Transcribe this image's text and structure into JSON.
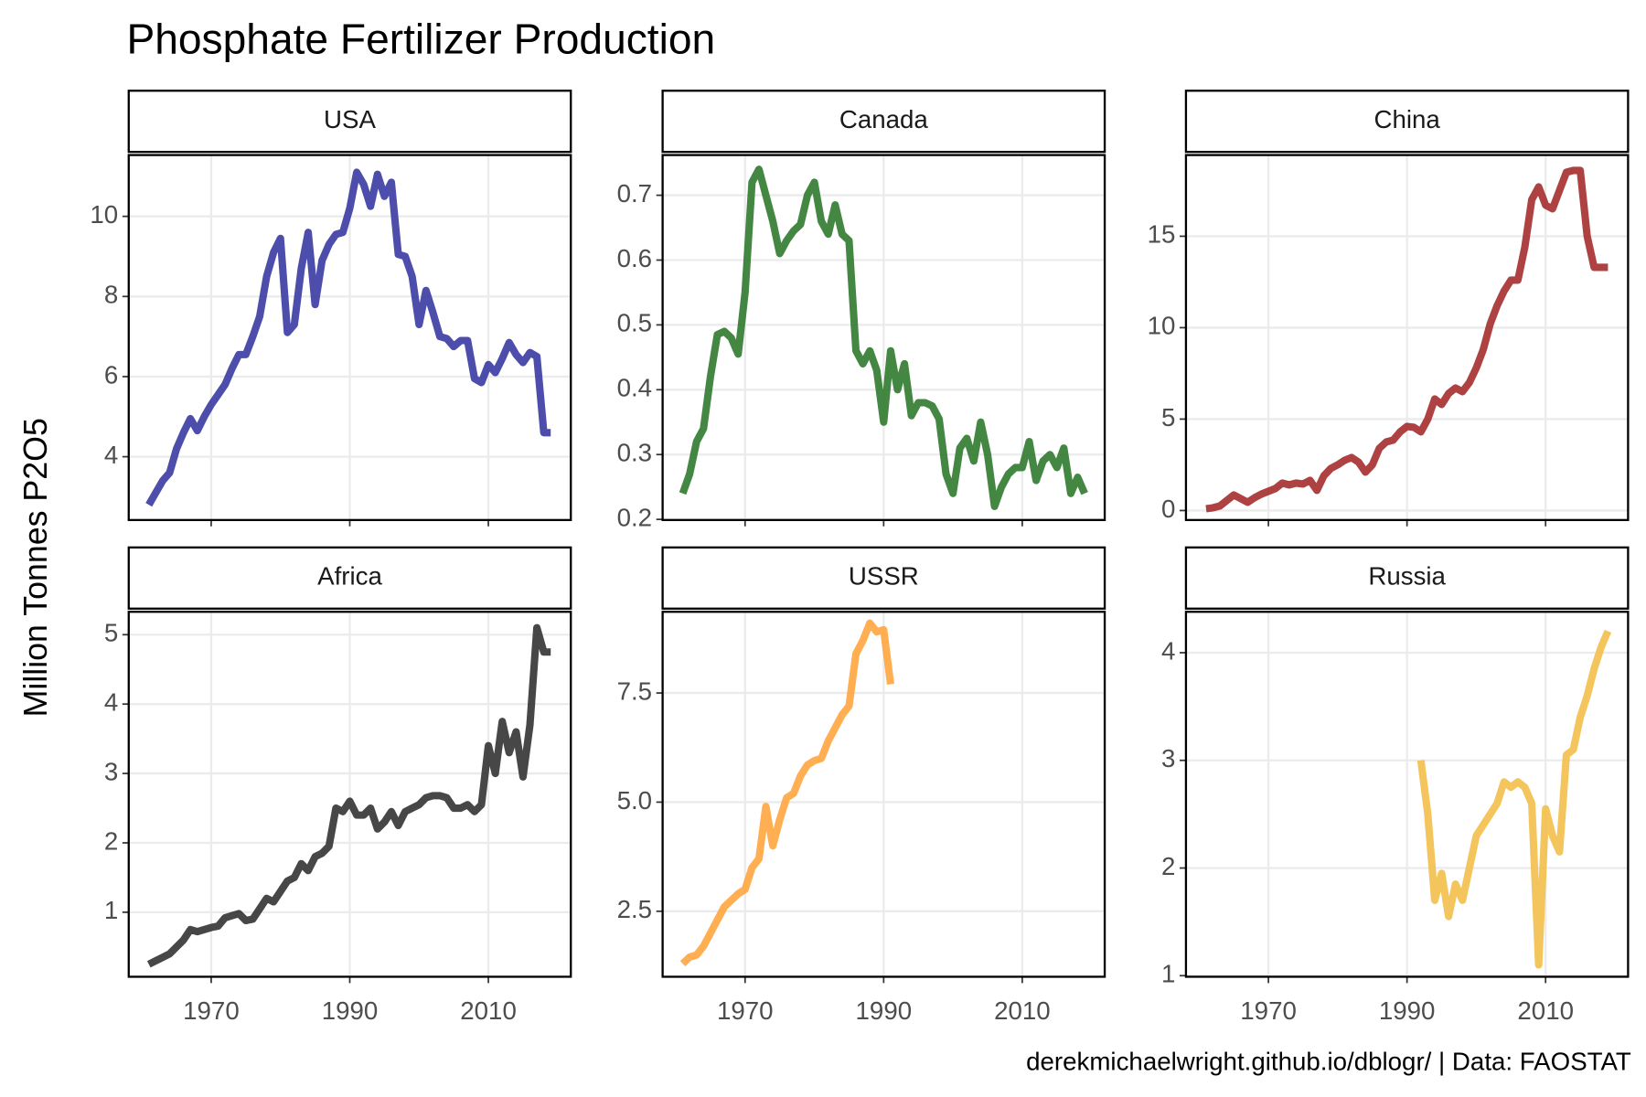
{
  "title": "Phosphate Fertilizer Production",
  "ylabel": "Million Tonnes P2O5",
  "caption": "derekmichaelwright.github.io/dblogr/ | Data: FAOSTAT",
  "chart_data": [
    {
      "type": "line",
      "title": "USA",
      "color": "#3a3aa3",
      "grid": true,
      "x": [
        1961,
        1962,
        1963,
        1964,
        1965,
        1966,
        1967,
        1968,
        1969,
        1970,
        1971,
        1972,
        1973,
        1974,
        1975,
        1976,
        1977,
        1978,
        1979,
        1980,
        1981,
        1982,
        1983,
        1984,
        1985,
        1986,
        1987,
        1988,
        1989,
        1990,
        1991,
        1992,
        1993,
        1994,
        1995,
        1996,
        1997,
        1998,
        1999,
        2000,
        2001,
        2002,
        2003,
        2004,
        2005,
        2006,
        2007,
        2008,
        2009,
        2010,
        2011,
        2012,
        2013,
        2014,
        2015,
        2016,
        2017,
        2018,
        2019
      ],
      "values": [
        2.8,
        3.1,
        3.4,
        3.6,
        4.2,
        4.6,
        4.95,
        4.65,
        5.0,
        5.3,
        5.55,
        5.8,
        6.2,
        6.55,
        6.55,
        7.0,
        7.5,
        8.5,
        9.1,
        9.45,
        7.1,
        7.3,
        8.7,
        9.6,
        7.8,
        8.9,
        9.3,
        9.55,
        9.6,
        10.2,
        11.1,
        10.8,
        10.25,
        11.05,
        10.5,
        10.85,
        9.05,
        9.0,
        8.5,
        7.3,
        8.15,
        7.6,
        7.0,
        6.95,
        6.75,
        6.9,
        6.9,
        5.95,
        5.85,
        6.3,
        6.1,
        6.45,
        6.85,
        6.55,
        6.35,
        6.6,
        6.5,
        4.6,
        4.6
      ],
      "xlim": [
        1958.1,
        2021.9
      ],
      "xticks": [
        1970,
        1990,
        2010
      ],
      "ylim": [
        2.42,
        11.53
      ],
      "yticks": [
        4,
        6,
        8,
        10
      ]
    },
    {
      "type": "line",
      "title": "Canada",
      "color": "#2f7a2f",
      "grid": true,
      "x": [
        1961,
        1962,
        1963,
        1964,
        1965,
        1966,
        1967,
        1968,
        1969,
        1970,
        1971,
        1972,
        1973,
        1974,
        1975,
        1976,
        1977,
        1978,
        1979,
        1980,
        1981,
        1982,
        1983,
        1984,
        1985,
        1986,
        1987,
        1988,
        1989,
        1990,
        1991,
        1992,
        1993,
        1994,
        1995,
        1996,
        1997,
        1998,
        1999,
        2000,
        2001,
        2002,
        2003,
        2004,
        2005,
        2006,
        2007,
        2008,
        2009,
        2010,
        2011,
        2012,
        2013,
        2014,
        2015,
        2016,
        2017,
        2018,
        2019
      ],
      "values": [
        0.24,
        0.27,
        0.32,
        0.34,
        0.42,
        0.485,
        0.49,
        0.48,
        0.455,
        0.55,
        0.72,
        0.74,
        0.7,
        0.66,
        0.61,
        0.63,
        0.645,
        0.655,
        0.7,
        0.72,
        0.66,
        0.64,
        0.685,
        0.64,
        0.63,
        0.46,
        0.44,
        0.46,
        0.43,
        0.35,
        0.46,
        0.4,
        0.44,
        0.36,
        0.38,
        0.38,
        0.375,
        0.355,
        0.27,
        0.24,
        0.31,
        0.325,
        0.29,
        0.35,
        0.3,
        0.22,
        0.25,
        0.27,
        0.28,
        0.28,
        0.32,
        0.26,
        0.29,
        0.3,
        0.28,
        0.31,
        0.24,
        0.265,
        0.24
      ],
      "xlim": [
        1958.1,
        2021.9
      ],
      "xticks": [
        1970,
        1990,
        2010
      ],
      "ylim": [
        0.199,
        0.762
      ],
      "yticks": [
        0.2,
        0.3,
        0.4,
        0.5,
        0.6,
        0.7
      ]
    },
    {
      "type": "line",
      "title": "China",
      "color": "#a52e2e",
      "grid": true,
      "x": [
        1961,
        1962,
        1963,
        1964,
        1965,
        1966,
        1967,
        1968,
        1969,
        1970,
        1971,
        1972,
        1973,
        1974,
        1975,
        1976,
        1977,
        1978,
        1979,
        1980,
        1981,
        1982,
        1983,
        1984,
        1985,
        1986,
        1987,
        1988,
        1989,
        1990,
        1991,
        1992,
        1993,
        1994,
        1995,
        1996,
        1997,
        1998,
        1999,
        2000,
        2001,
        2002,
        2003,
        2004,
        2005,
        2006,
        2007,
        2008,
        2009,
        2010,
        2011,
        2012,
        2013,
        2014,
        2015,
        2016,
        2017,
        2018,
        2019
      ],
      "values": [
        0.1,
        0.15,
        0.25,
        0.55,
        0.85,
        0.65,
        0.45,
        0.7,
        0.9,
        1.05,
        1.2,
        1.5,
        1.4,
        1.5,
        1.45,
        1.65,
        1.1,
        1.9,
        2.3,
        2.5,
        2.75,
        2.9,
        2.65,
        2.1,
        2.5,
        3.4,
        3.75,
        3.85,
        4.3,
        4.6,
        4.55,
        4.3,
        5.0,
        6.1,
        5.8,
        6.4,
        6.7,
        6.5,
        7.0,
        7.8,
        8.8,
        10.2,
        11.2,
        12.0,
        12.6,
        12.6,
        14.4,
        17.0,
        17.7,
        16.7,
        16.5,
        17.5,
        18.5,
        18.6,
        18.6,
        15.0,
        13.3,
        13.3,
        13.3
      ],
      "xlim": [
        1958.1,
        2021.9
      ],
      "xticks": [
        1970,
        1990,
        2010
      ],
      "ylim": [
        -0.52,
        19.44
      ],
      "yticks": [
        0,
        5,
        10,
        15
      ]
    },
    {
      "type": "line",
      "title": "Africa",
      "color": "#333333",
      "grid": true,
      "x": [
        1961,
        1962,
        1963,
        1964,
        1965,
        1966,
        1967,
        1968,
        1969,
        1970,
        1971,
        1972,
        1973,
        1974,
        1975,
        1976,
        1977,
        1978,
        1979,
        1980,
        1981,
        1982,
        1983,
        1984,
        1985,
        1986,
        1987,
        1988,
        1989,
        1990,
        1991,
        1992,
        1993,
        1994,
        1995,
        1996,
        1997,
        1998,
        1999,
        2000,
        2001,
        2002,
        2003,
        2004,
        2005,
        2006,
        2007,
        2008,
        2009,
        2010,
        2011,
        2012,
        2013,
        2014,
        2015,
        2016,
        2017,
        2018,
        2019
      ],
      "values": [
        0.25,
        0.3,
        0.35,
        0.4,
        0.5,
        0.6,
        0.75,
        0.72,
        0.75,
        0.78,
        0.8,
        0.92,
        0.95,
        0.98,
        0.88,
        0.9,
        1.05,
        1.2,
        1.15,
        1.3,
        1.45,
        1.5,
        1.7,
        1.6,
        1.8,
        1.85,
        1.95,
        2.5,
        2.45,
        2.6,
        2.4,
        2.4,
        2.5,
        2.2,
        2.3,
        2.45,
        2.25,
        2.45,
        2.5,
        2.55,
        2.65,
        2.68,
        2.68,
        2.65,
        2.5,
        2.5,
        2.55,
        2.45,
        2.55,
        3.4,
        3.0,
        3.75,
        3.3,
        3.6,
        2.95,
        3.7,
        5.1,
        4.75,
        4.75
      ],
      "xlim": [
        1958.1,
        2021.9
      ],
      "xticks": [
        1970,
        1990,
        2010
      ],
      "ylim": [
        0.07,
        5.33
      ],
      "yticks": [
        1,
        2,
        3,
        4,
        5
      ]
    },
    {
      "type": "line",
      "title": "USSR",
      "color": "#ffa53f",
      "grid": true,
      "x": [
        1961,
        1962,
        1963,
        1964,
        1965,
        1966,
        1967,
        1968,
        1969,
        1970,
        1971,
        1972,
        1973,
        1974,
        1975,
        1976,
        1977,
        1978,
        1979,
        1980,
        1981,
        1982,
        1983,
        1984,
        1985,
        1986,
        1987,
        1988,
        1989,
        1990,
        1991
      ],
      "values": [
        1.3,
        1.45,
        1.5,
        1.7,
        2.0,
        2.3,
        2.6,
        2.75,
        2.9,
        3.0,
        3.5,
        3.7,
        4.9,
        4.0,
        4.6,
        5.1,
        5.2,
        5.6,
        5.85,
        5.95,
        6.0,
        6.4,
        6.7,
        7.0,
        7.2,
        8.4,
        8.7,
        9.1,
        8.9,
        8.95,
        7.7
      ],
      "xlim": [
        1958.1,
        2021.9
      ],
      "xticks": [
        1970,
        1990,
        2010
      ],
      "ylim": [
        1.0,
        9.36
      ],
      "yticks": [
        2.5,
        {
          "value": 5,
          "label": "5.0"
        },
        7.5
      ]
    },
    {
      "type": "line",
      "title": "Russia",
      "color": "#f2bf4a",
      "grid": true,
      "x": [
        1992,
        1993,
        1994,
        1995,
        1996,
        1997,
        1998,
        1999,
        2000,
        2001,
        2002,
        2003,
        2004,
        2005,
        2006,
        2007,
        2008,
        2009,
        2010,
        2011,
        2012,
        2013,
        2014,
        2015,
        2016,
        2017,
        2018,
        2019
      ],
      "values": [
        3.0,
        2.5,
        1.7,
        1.95,
        1.55,
        1.85,
        1.7,
        2.0,
        2.3,
        2.4,
        2.5,
        2.6,
        2.8,
        2.75,
        2.8,
        2.75,
        2.6,
        1.1,
        2.55,
        2.3,
        2.15,
        3.05,
        3.1,
        3.4,
        3.6,
        3.85,
        4.05,
        4.2
      ],
      "xlim": [
        1958.1,
        2021.9
      ],
      "xticks": [
        1970,
        1990,
        2010
      ],
      "ylim": [
        0.99,
        4.38
      ],
      "yticks": [
        1,
        2,
        3,
        4
      ]
    }
  ]
}
